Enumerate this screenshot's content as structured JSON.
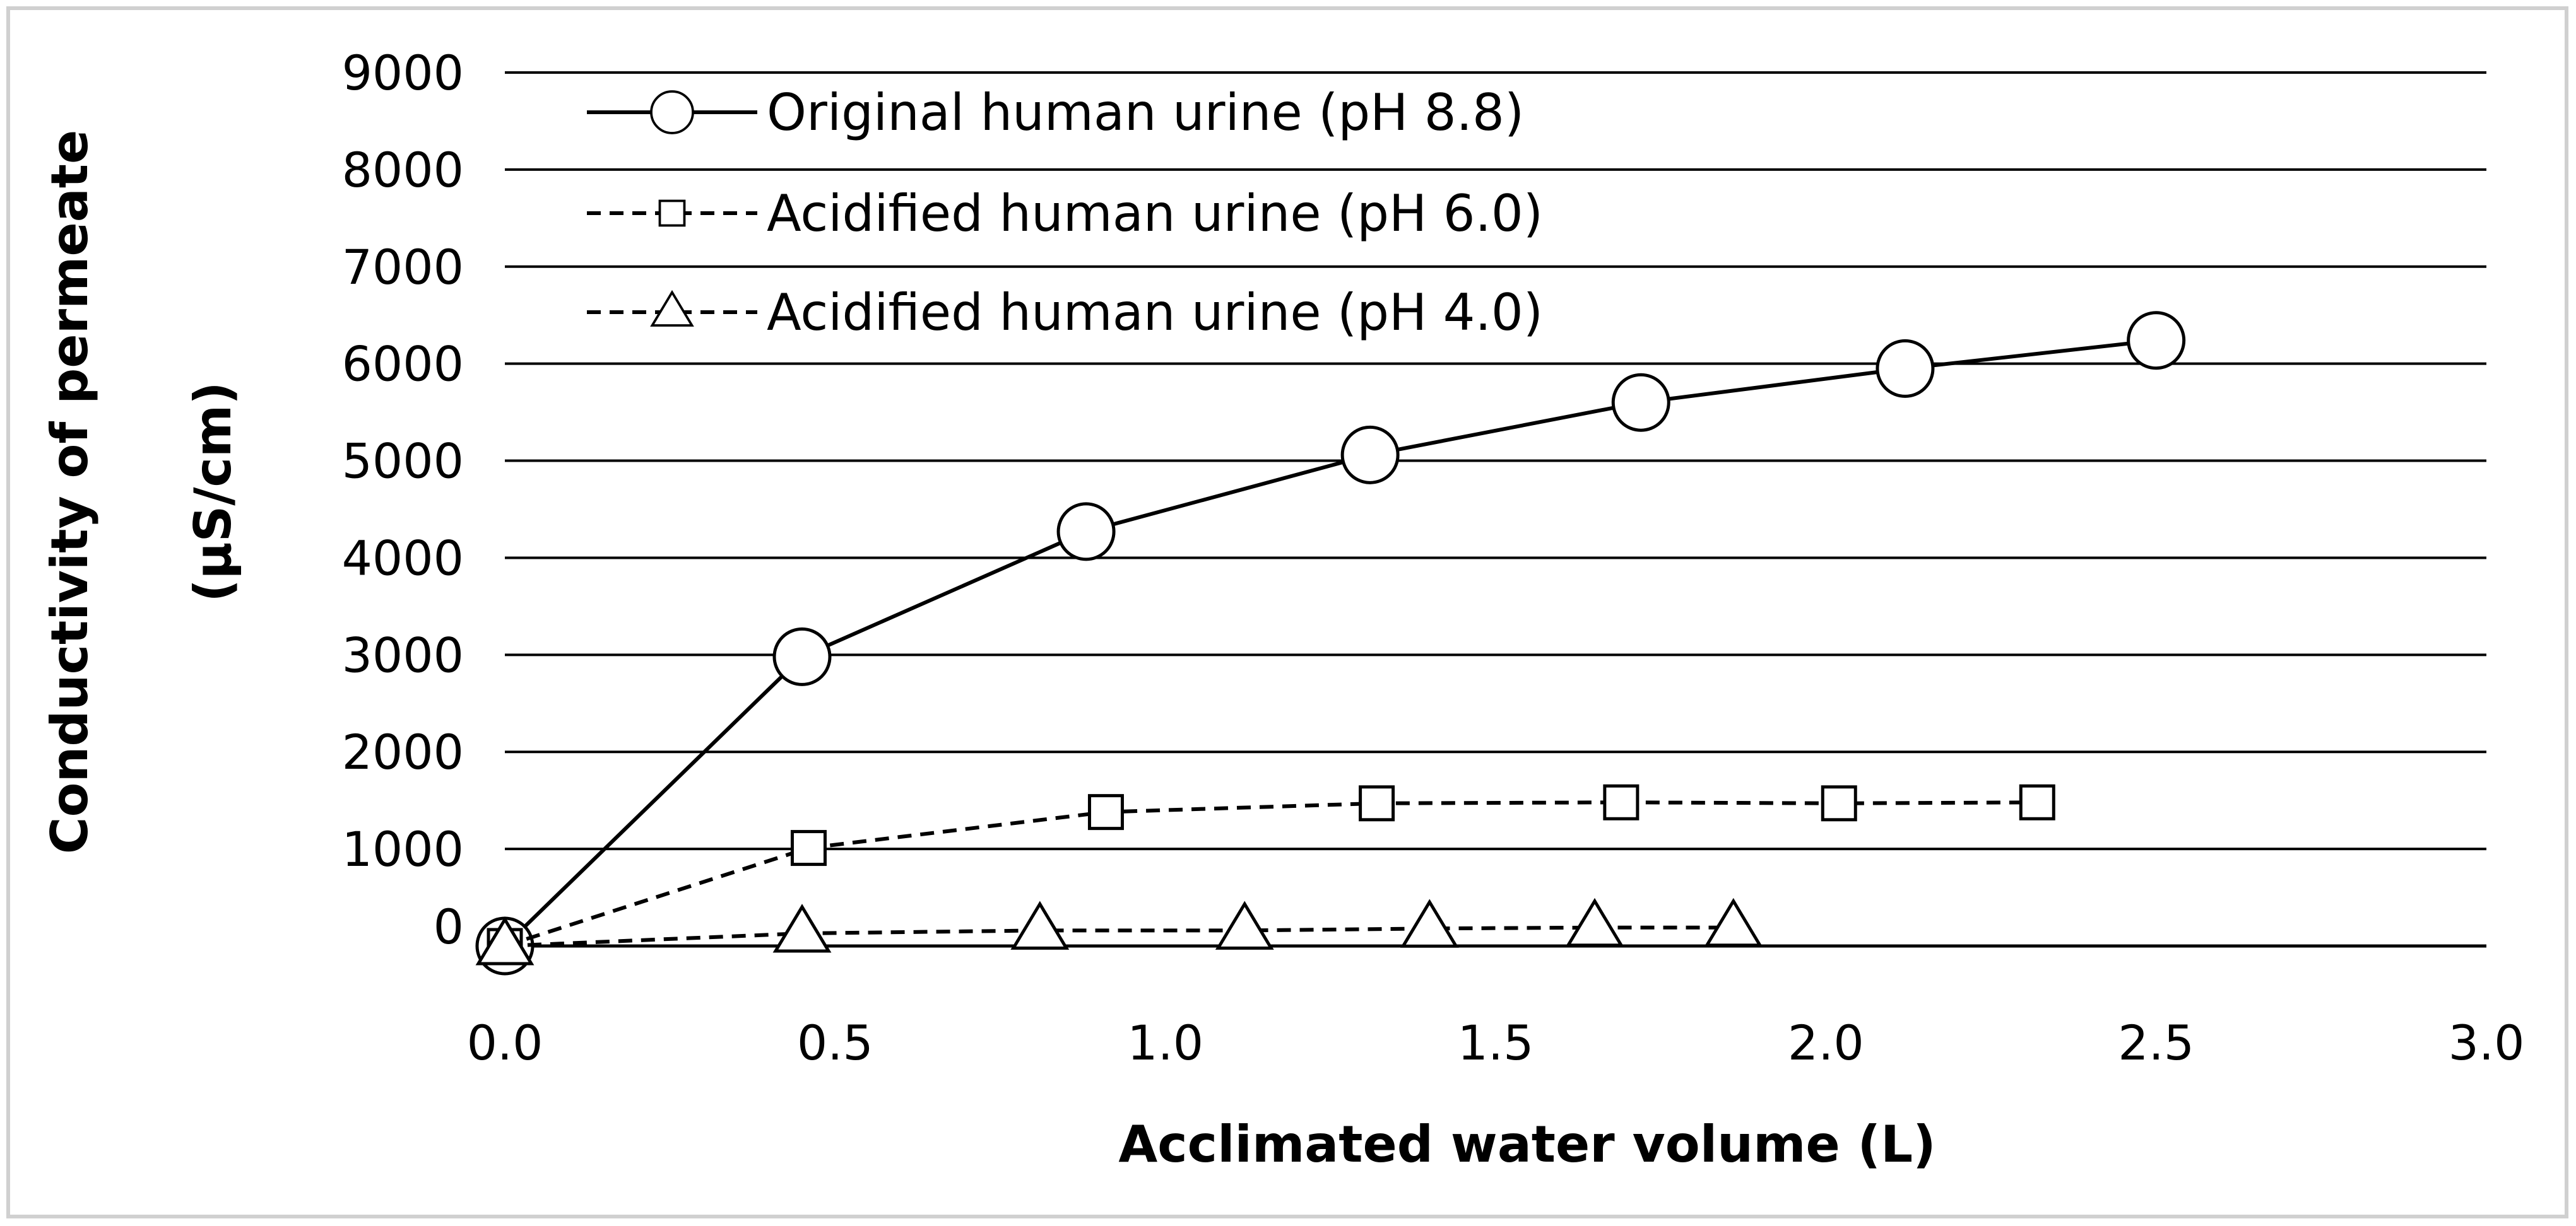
{
  "chart_data": {
    "type": "line",
    "xlabel": "Acclimated water volume (L)",
    "ylabel_line1": "Conductivity of permeate",
    "ylabel_line2": "(µS/cm)",
    "xlim": [
      0,
      3
    ],
    "ylim": [
      0,
      9000
    ],
    "x_ticks": [
      "0.0",
      "0.5",
      "1.0",
      "1.5",
      "2.0",
      "2.5",
      "3.0"
    ],
    "y_ticks": [
      "0",
      "1000",
      "2000",
      "3000",
      "4000",
      "5000",
      "6000",
      "7000",
      "8000",
      "9000"
    ],
    "grid": "horizontal",
    "legend_position": "top-left",
    "series": [
      {
        "name": "Original human urine (pH 8.8)",
        "marker": "circle",
        "line": "solid",
        "x": [
          0.0,
          0.45,
          0.88,
          1.31,
          1.72,
          2.12,
          2.5
        ],
        "y": [
          0,
          2980,
          4270,
          5060,
          5600,
          5950,
          6240
        ]
      },
      {
        "name": "Acidified human urine (pH 6.0)",
        "marker": "square",
        "line": "dashed",
        "x": [
          0.0,
          0.46,
          0.91,
          1.32,
          1.69,
          2.02,
          2.32
        ],
        "y": [
          0,
          1010,
          1380,
          1470,
          1480,
          1470,
          1480
        ]
      },
      {
        "name": "Acidified human urine (pH 4.0)",
        "marker": "triangle",
        "line": "dashed",
        "x": [
          0.0,
          0.45,
          0.81,
          1.12,
          1.4,
          1.65,
          1.86
        ],
        "y": [
          0,
          130,
          160,
          160,
          180,
          190,
          190
        ]
      }
    ]
  }
}
